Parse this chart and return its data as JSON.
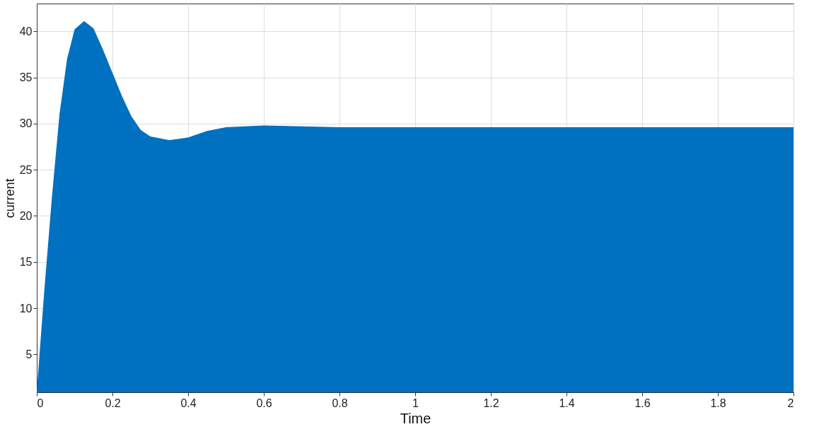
{
  "chart_data": {
    "type": "area",
    "xlabel": "Time",
    "ylabel": "current",
    "x": [
      0,
      0.02,
      0.04,
      0.06,
      0.08,
      0.1,
      0.125,
      0.15,
      0.175,
      0.2,
      0.225,
      0.25,
      0.275,
      0.3,
      0.35,
      0.4,
      0.45,
      0.5,
      0.6,
      0.7,
      0.8,
      1,
      1.5,
      2
    ],
    "series": [
      {
        "color": "#0070c0",
        "values": [
          1,
          12,
          22,
          31,
          37,
          40.2,
          41.1,
          40.3,
          38,
          35.5,
          33,
          30.8,
          29.3,
          28.6,
          28.2,
          28.5,
          29.2,
          29.6,
          29.8,
          29.7,
          29.6,
          29.6,
          29.6,
          29.6
        ]
      }
    ],
    "xlim": [
      0,
      2
    ],
    "xticks": [
      0,
      0.2,
      0.4,
      0.6,
      0.8,
      1,
      1.2,
      1.4,
      1.6,
      1.8,
      2
    ],
    "ylim": [
      0.9,
      43
    ],
    "yticks": [
      5,
      10,
      15,
      20,
      25,
      30,
      35,
      40
    ],
    "grid": true
  }
}
